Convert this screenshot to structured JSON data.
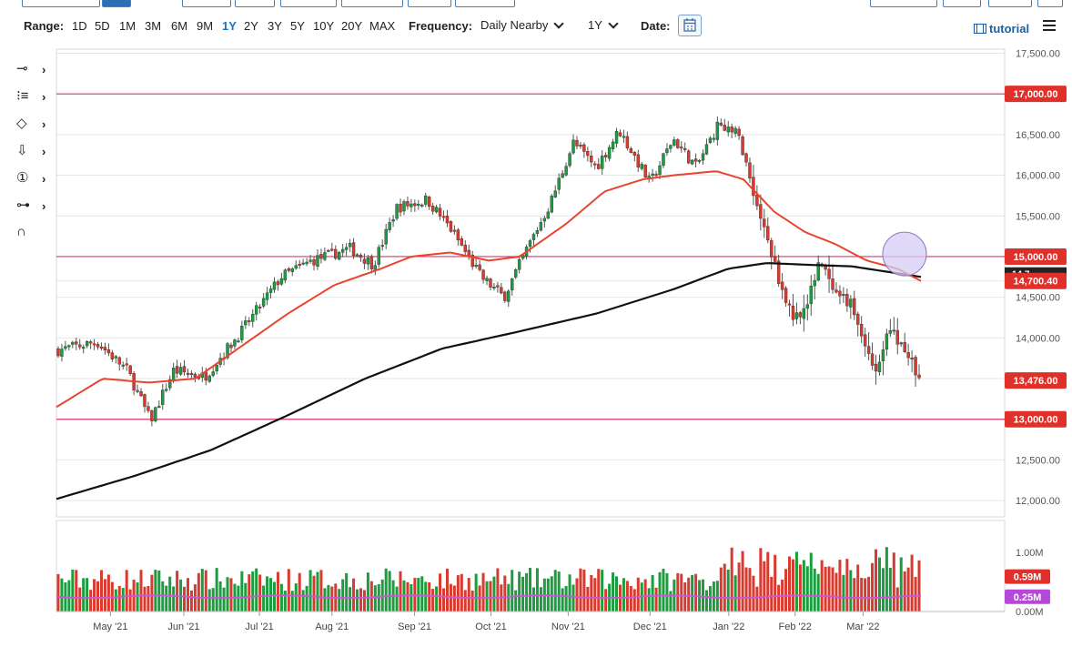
{
  "toolbar": {
    "range_label": "Range:",
    "ranges": [
      "1D",
      "5D",
      "1M",
      "3M",
      "6M",
      "9M",
      "1Y",
      "2Y",
      "3Y",
      "5Y",
      "10Y",
      "20Y",
      "MAX"
    ],
    "active_range": "1Y",
    "frequency_label": "Frequency:",
    "frequency_value": "Daily Nearby",
    "period_value": "1Y",
    "date_label": "Date:",
    "tutorial_label": "tutorial",
    "icons": [
      "calendar-icon",
      "tutorial-film-icon",
      "menu-icon"
    ]
  },
  "sidebar_tools": [
    "line-tool-icon",
    "fibonacci-tool-icon",
    "shape-tool-icon",
    "arrow-tool-icon",
    "annotation-tool-icon",
    "measure-tool-icon",
    "magnet-tool-icon"
  ],
  "sidebar_tool_glyphs": [
    "⊸",
    "⁝≡",
    "◇",
    "⇩",
    "①",
    "⊶",
    "∩"
  ],
  "colors": {
    "up": "#1a9c3f",
    "down": "#d83a2f",
    "sma_fast": "#e8452e",
    "sma_slow": "#111111",
    "hline": "#d6386a",
    "badge_red": "#e0302a",
    "badge_purple": "#b548d6",
    "volume_avg": "#c65ad0",
    "grid": "#e6e6e6",
    "highlight_circle": "#d7ccf5"
  },
  "chart_data": {
    "type": "candlestick",
    "ylim": [
      11800,
      17550
    ],
    "y_ticks": [
      "17,500.00",
      "16,500.00",
      "16,000.00",
      "15,500.00",
      "14,500.00",
      "14,000.00",
      "12,500.00",
      "12,000.00"
    ],
    "y_tick_values": [
      17500,
      16500,
      16000,
      15500,
      14500,
      14000,
      12500,
      12000
    ],
    "x_labels": [
      "May '21",
      "Jun '21",
      "Jul '21",
      "Aug '21",
      "Sep '21",
      "Oct '21",
      "Nov '21",
      "Dec '21",
      "Jan '22",
      "Feb '22",
      "Mar '22"
    ],
    "x_label_positions": [
      0.07,
      0.165,
      0.263,
      0.357,
      0.464,
      0.563,
      0.663,
      0.769,
      0.871,
      0.957,
      1.045
    ],
    "close_anchors": [
      [
        0,
        13850
      ],
      [
        0.05,
        13950
      ],
      [
        0.09,
        13600
      ],
      [
        0.12,
        12980
      ],
      [
        0.15,
        13600
      ],
      [
        0.19,
        13520
      ],
      [
        0.24,
        14100
      ],
      [
        0.29,
        14750
      ],
      [
        0.33,
        14950
      ],
      [
        0.38,
        15100
      ],
      [
        0.41,
        14900
      ],
      [
        0.44,
        15600
      ],
      [
        0.48,
        15700
      ],
      [
        0.51,
        15350
      ],
      [
        0.55,
        14750
      ],
      [
        0.58,
        14500
      ],
      [
        0.61,
        15100
      ],
      [
        0.64,
        15650
      ],
      [
        0.67,
        16400
      ],
      [
        0.7,
        16100
      ],
      [
        0.73,
        16550
      ],
      [
        0.77,
        15900
      ],
      [
        0.8,
        16450
      ],
      [
        0.83,
        16100
      ],
      [
        0.86,
        16650
      ],
      [
        0.885,
        16500
      ],
      [
        0.91,
        15600
      ],
      [
        0.94,
        14650
      ],
      [
        0.955,
        14250
      ],
      [
        0.975,
        14400
      ],
      [
        0.99,
        15000
      ],
      [
        1.01,
        14500
      ],
      [
        1.03,
        14450
      ],
      [
        1.05,
        13900
      ],
      [
        1.065,
        13600
      ],
      [
        1.08,
        14100
      ],
      [
        1.1,
        13900
      ],
      [
        1.12,
        13500
      ]
    ],
    "sma_fast_anchors": [
      [
        0,
        13150
      ],
      [
        0.06,
        13500
      ],
      [
        0.12,
        13450
      ],
      [
        0.18,
        13500
      ],
      [
        0.24,
        13900
      ],
      [
        0.3,
        14300
      ],
      [
        0.36,
        14650
      ],
      [
        0.42,
        14850
      ],
      [
        0.46,
        15000
      ],
      [
        0.51,
        15050
      ],
      [
        0.56,
        14950
      ],
      [
        0.6,
        15000
      ],
      [
        0.66,
        15400
      ],
      [
        0.71,
        15800
      ],
      [
        0.76,
        15950
      ],
      [
        0.8,
        16000
      ],
      [
        0.855,
        16050
      ],
      [
        0.89,
        15950
      ],
      [
        0.93,
        15550
      ],
      [
        0.97,
        15300
      ],
      [
        1.01,
        15150
      ],
      [
        1.05,
        14950
      ],
      [
        1.09,
        14850
      ],
      [
        1.12,
        14700
      ]
    ],
    "sma_slow_anchors": [
      [
        0,
        12020
      ],
      [
        0.1,
        12300
      ],
      [
        0.2,
        12620
      ],
      [
        0.3,
        13050
      ],
      [
        0.4,
        13500
      ],
      [
        0.5,
        13870
      ],
      [
        0.6,
        14080
      ],
      [
        0.7,
        14300
      ],
      [
        0.8,
        14600
      ],
      [
        0.87,
        14850
      ],
      [
        0.92,
        14920
      ],
      [
        0.97,
        14900
      ],
      [
        1.03,
        14880
      ],
      [
        1.12,
        14750
      ]
    ],
    "horizontal_lines": [
      {
        "value": 17000,
        "label": "17,000.00"
      },
      {
        "value": 15000,
        "label": "15,000.00"
      },
      {
        "value": 13000,
        "label": "13,000.00"
      }
    ],
    "price_badges": [
      {
        "value": 14700.4,
        "label": "14,700.40",
        "color": "badge_red"
      },
      {
        "value": 13476,
        "label": "13,476.00",
        "color": "badge_red"
      }
    ],
    "hidden_label_fragment": "14,7",
    "highlight": {
      "x": 1.12,
      "y": 14920
    },
    "volume": {
      "y_ticks": [
        "1.00M",
        "0.00M"
      ],
      "y_tick_values": [
        1.0,
        0.0
      ],
      "badges": [
        {
          "value": 0.59,
          "label": "0.59M",
          "color": "badge_red"
        },
        {
          "value": 0.25,
          "label": "0.25M",
          "color": "badge_purple"
        }
      ],
      "average": 0.25
    }
  }
}
